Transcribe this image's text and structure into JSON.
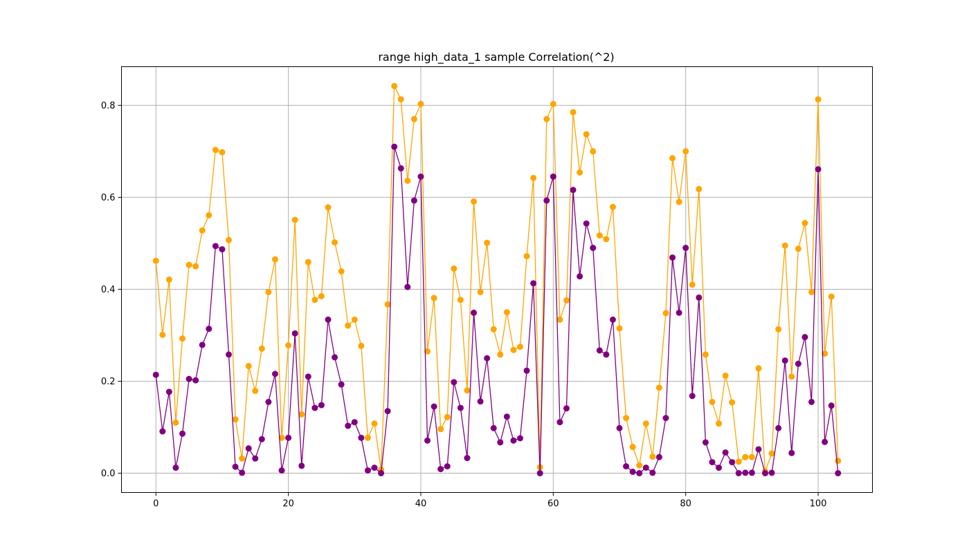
{
  "chart_data": {
    "type": "line",
    "title": "range high_data_1 sample Correlation(^2)",
    "xlabel": "",
    "ylabel": "",
    "xlim": [
      -5.2,
      108.2
    ],
    "ylim": [
      -0.042,
      0.884
    ],
    "xticks": [
      0,
      20,
      40,
      60,
      80,
      100
    ],
    "yticks": [
      0.0,
      0.2,
      0.4,
      0.6,
      0.8
    ],
    "ytick_labels": [
      "0.0",
      "0.2",
      "0.4",
      "0.6",
      "0.8"
    ],
    "grid": true,
    "marker": "circle",
    "series": [
      {
        "color": "#ffa500",
        "values": [
          0.462,
          0.301,
          0.421,
          0.11,
          0.293,
          0.453,
          0.45,
          0.528,
          0.561,
          0.703,
          0.698,
          0.507,
          0.117,
          0.032,
          0.233,
          0.179,
          0.271,
          0.394,
          0.465,
          0.077,
          0.278,
          0.551,
          0.128,
          0.459,
          0.377,
          0.385,
          0.578,
          0.502,
          0.439,
          0.321,
          0.334,
          0.277,
          0.077,
          0.108,
          0.008,
          0.367,
          0.842,
          0.813,
          0.636,
          0.77,
          0.803,
          0.265,
          0.381,
          0.096,
          0.122,
          0.445,
          0.377,
          0.18,
          0.591,
          0.394,
          0.501,
          0.313,
          0.258,
          0.35,
          0.268,
          0.275,
          0.472,
          0.642,
          0.013,
          0.77,
          0.803,
          0.334,
          0.376,
          0.785,
          0.654,
          0.737,
          0.7,
          0.517,
          0.509,
          0.579,
          0.315,
          0.12,
          0.057,
          0.017,
          0.108,
          0.036,
          0.186,
          0.348,
          0.685,
          0.59,
          0.7,
          0.41,
          0.618,
          0.258,
          0.155,
          0.108,
          0.212,
          0.154,
          0.025,
          0.035,
          0.035,
          0.228,
          0.004,
          0.043,
          0.313,
          0.495,
          0.21,
          0.488,
          0.544,
          0.394,
          0.813,
          0.26,
          0.384,
          0.027
        ]
      },
      {
        "color": "#800080",
        "values": [
          0.214,
          0.091,
          0.177,
          0.012,
          0.086,
          0.205,
          0.202,
          0.279,
          0.314,
          0.494,
          0.487,
          0.258,
          0.014,
          0.001,
          0.054,
          0.032,
          0.074,
          0.155,
          0.216,
          0.006,
          0.077,
          0.304,
          0.016,
          0.21,
          0.142,
          0.148,
          0.334,
          0.252,
          0.193,
          0.103,
          0.111,
          0.077,
          0.006,
          0.012,
          0.0,
          0.135,
          0.71,
          0.663,
          0.405,
          0.593,
          0.645,
          0.071,
          0.145,
          0.009,
          0.015,
          0.198,
          0.142,
          0.033,
          0.349,
          0.156,
          0.25,
          0.098,
          0.067,
          0.123,
          0.071,
          0.076,
          0.223,
          0.413,
          0.0,
          0.593,
          0.645,
          0.111,
          0.141,
          0.616,
          0.428,
          0.543,
          0.49,
          0.267,
          0.258,
          0.334,
          0.098,
          0.015,
          0.003,
          0.0,
          0.012,
          0.001,
          0.035,
          0.12,
          0.469,
          0.349,
          0.49,
          0.168,
          0.382,
          0.067,
          0.024,
          0.012,
          0.045,
          0.024,
          0.0,
          0.001,
          0.001,
          0.052,
          0.0,
          0.001,
          0.098,
          0.245,
          0.044,
          0.238,
          0.296,
          0.155,
          0.661,
          0.068,
          0.147,
          0.0
        ]
      }
    ]
  }
}
